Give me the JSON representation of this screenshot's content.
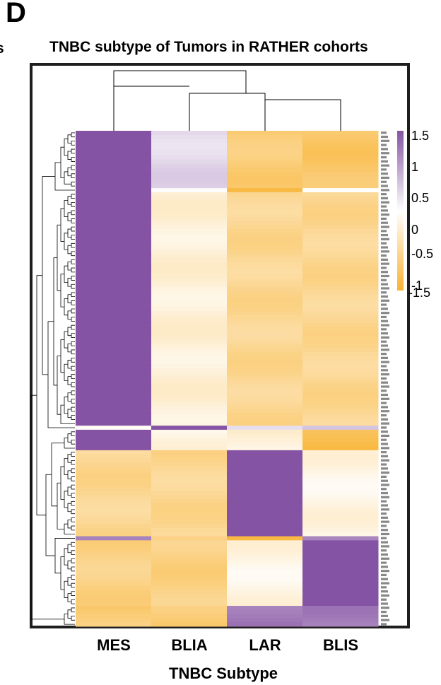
{
  "panel_label": "D",
  "edge_label": "s",
  "colors": {
    "high": "#8553a3",
    "mid": "#ffffff",
    "low": "#f8b332",
    "frame": "#1e1e1e",
    "dendrogram": "#000000"
  },
  "chart_data": {
    "type": "heatmap",
    "title": "TNBC subtype of Tumors in RATHER cohorts",
    "xlabel": "TNBC Subtype",
    "ylabel": "",
    "categories": [
      "MES",
      "BLIA",
      "LAR",
      "BLIS"
    ],
    "colorbar": {
      "ticks": [
        "1.5",
        "1",
        "0.5",
        "0",
        "-0.5",
        "-1",
        "-1.5"
      ],
      "range": [
        -1.5,
        1.5
      ]
    },
    "row_labels_note": "row labels (tumor IDs) too small to read",
    "row_blocks": [
      {
        "rows": 14,
        "values": [
          1.5,
          0.35,
          -1.0,
          -1.1
        ]
      },
      {
        "rows": 1,
        "values": [
          1.5,
          0.0,
          -1.3,
          -0.1
        ]
      },
      {
        "rows": 57,
        "values": [
          1.5,
          -0.3,
          -0.8,
          -0.8
        ]
      },
      {
        "rows": 1,
        "values": [
          0.0,
          1.5,
          0.4,
          0.4
        ]
      },
      {
        "rows": 5,
        "values": [
          1.5,
          -0.2,
          -0.3,
          -1.3
        ]
      },
      {
        "rows": 21,
        "values": [
          -0.8,
          -0.8,
          1.5,
          -0.2
        ]
      },
      {
        "rows": 1,
        "values": [
          1.2,
          -1.0,
          -1.3,
          1.0
        ]
      },
      {
        "rows": 16,
        "values": [
          -0.9,
          -0.9,
          -0.2,
          1.5
        ]
      },
      {
        "rows": 5,
        "values": [
          -1.0,
          -1.0,
          1.2,
          1.1
        ]
      }
    ]
  }
}
